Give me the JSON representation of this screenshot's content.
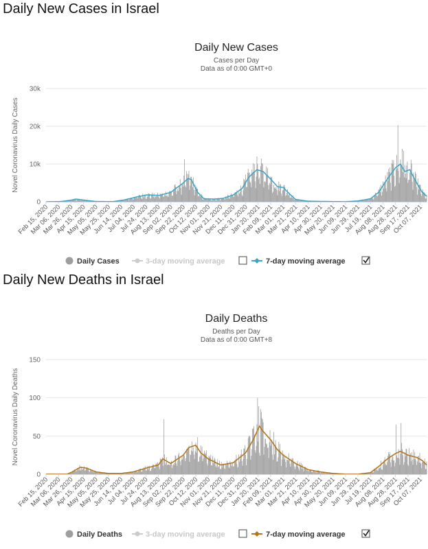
{
  "sections": [
    {
      "heading": "Daily New Cases in Israel"
    },
    {
      "heading": "Daily New Deaths in Israel"
    }
  ],
  "chart_data": [
    {
      "type": "bar",
      "title": "Daily New Cases",
      "subtitle_1": "Cases per Day",
      "subtitle_2": "Data as of 0:00 GMT+0",
      "ylabel": "Novel Coronavirus Daily Cases",
      "ylim": [
        0,
        30000
      ],
      "yticks": [
        0,
        10000,
        20000,
        30000
      ],
      "ytick_labels": [
        "0",
        "10k",
        "20k",
        "30k"
      ],
      "grid": true,
      "x_start": "Feb 15, 2020",
      "x_end": "Oct 17, 2021",
      "xtick_labels": [
        "Feb 15, 2020",
        "Mar 06, 2020",
        "Mar 26, 2020",
        "Apr 15, 2020",
        "May 05, 2020",
        "May 25, 2020",
        "Jun 14, 2020",
        "Jul 04, 2020",
        "Jul 24, 2020",
        "Aug 13, 2020",
        "Sep 02, 2020",
        "Sep 22, 2020",
        "Oct 12, 2020",
        "Nov 01, 2020",
        "Nov 21, 2020",
        "Dec 11, 2020",
        "Dec 31, 2020",
        "Jan 20, 2021",
        "Feb 09, 2021",
        "Mar 01, 2021",
        "Mar 21, 2021",
        "Apr 10, 2021",
        "Apr 30, 2021",
        "May 20, 2021",
        "Jun 09, 2021",
        "Jun 29, 2021",
        "Jul 19, 2021",
        "Aug 08, 2021",
        "Aug 28, 2021",
        "Sep 17, 2021",
        "Oct 07, 2021"
      ],
      "bar_color": "#9e9e9e",
      "line_color": "#3da6c4",
      "series": [
        {
          "name": "Daily Cases",
          "kind": "bars"
        },
        {
          "name": "3-day moving average",
          "kind": "line",
          "enabled": false
        },
        {
          "name": "7-day moving average",
          "kind": "line",
          "enabled": true
        }
      ],
      "legend": {
        "items": [
          "Daily Cases",
          "3-day moving average",
          "7-day moving average"
        ],
        "checkbox_3day": false,
        "checkbox_7day": true,
        "position": "bottom"
      },
      "trend_points": [
        [
          "Feb 15, 2020",
          0
        ],
        [
          "Mar 10, 2020",
          50
        ],
        [
          "Mar 25, 2020",
          400
        ],
        [
          "Apr 03, 2020",
          700
        ],
        [
          "Apr 15, 2020",
          450
        ],
        [
          "May 05, 2020",
          60
        ],
        [
          "Jun 01, 2020",
          30
        ],
        [
          "Jun 20, 2020",
          500
        ],
        [
          "Jul 10, 2020",
          1300
        ],
        [
          "Jul 25, 2020",
          1800
        ],
        [
          "Aug 15, 2020",
          1700
        ],
        [
          "Sep 02, 2020",
          2500
        ],
        [
          "Sep 22, 2020",
          5000
        ],
        [
          "Sep 30, 2020",
          6200
        ],
        [
          "Oct 05, 2020",
          5800
        ],
        [
          "Oct 15, 2020",
          2500
        ],
        [
          "Oct 25, 2020",
          800
        ],
        [
          "Nov 10, 2020",
          700
        ],
        [
          "Nov 25, 2020",
          900
        ],
        [
          "Dec 11, 2020",
          1800
        ],
        [
          "Dec 25, 2020",
          3500
        ],
        [
          "Jan 05, 2021",
          6500
        ],
        [
          "Jan 18, 2021",
          8500
        ],
        [
          "Jan 28, 2021",
          8000
        ],
        [
          "Feb 09, 2021",
          6000
        ],
        [
          "Feb 20, 2021",
          4000
        ],
        [
          "Mar 01, 2021",
          3800
        ],
        [
          "Mar 10, 2021",
          2300
        ],
        [
          "Mar 21, 2021",
          600
        ],
        [
          "Apr 10, 2021",
          150
        ],
        [
          "May 20, 2021",
          40
        ],
        [
          "Jun 09, 2021",
          20
        ],
        [
          "Jun 29, 2021",
          200
        ],
        [
          "Jul 19, 2021",
          800
        ],
        [
          "Aug 01, 2021",
          2500
        ],
        [
          "Aug 15, 2021",
          6000
        ],
        [
          "Aug 28, 2021",
          9000
        ],
        [
          "Sep 05, 2021",
          10000
        ],
        [
          "Sep 12, 2021",
          8000
        ],
        [
          "Sep 20, 2021",
          8500
        ],
        [
          "Oct 01, 2021",
          5000
        ],
        [
          "Oct 10, 2021",
          2500
        ],
        [
          "Oct 17, 2021",
          1500
        ]
      ],
      "spikes": [
        [
          "Sep 24, 2020",
          11300
        ],
        [
          "Jan 14, 2021",
          10000
        ],
        [
          "Jan 19, 2021",
          10100
        ],
        [
          "Sep 01, 2021",
          20300
        ],
        [
          "Sep 08, 2021",
          14000
        ],
        [
          "Sep 10, 2021",
          13500
        ],
        [
          "Aug 25, 2021",
          11000
        ]
      ]
    },
    {
      "type": "bar",
      "title": "Daily Deaths",
      "subtitle_1": "Deaths per Day",
      "subtitle_2": "Data as of 0:00 GMT+8",
      "ylabel": "Novel Coronavirus Daily Deaths",
      "ylim": [
        0,
        150
      ],
      "yticks": [
        0,
        50,
        100,
        150
      ],
      "ytick_labels": [
        "0",
        "50",
        "100",
        "150"
      ],
      "grid": true,
      "x_start": "Feb 15, 2020",
      "x_end": "Oct 17, 2021",
      "xtick_labels": [
        "Feb 15, 2020",
        "Mar 06, 2020",
        "Mar 26, 2020",
        "Apr 15, 2020",
        "May 05, 2020",
        "May 25, 2020",
        "Jun 14, 2020",
        "Jul 04, 2020",
        "Jul 24, 2020",
        "Aug 13, 2020",
        "Sep 02, 2020",
        "Sep 22, 2020",
        "Oct 12, 2020",
        "Nov 01, 2020",
        "Nov 21, 2020",
        "Dec 11, 2020",
        "Dec 31, 2020",
        "Jan 20, 2021",
        "Feb 09, 2021",
        "Mar 01, 2021",
        "Mar 21, 2021",
        "Apr 10, 2021",
        "Apr 30, 2021",
        "May 20, 2021",
        "Jun 09, 2021",
        "Jun 29, 2021",
        "Jul 19, 2021",
        "Aug 08, 2021",
        "Aug 28, 2021",
        "Sep 17, 2021",
        "Oct 07, 2021"
      ],
      "bar_color": "#9e9e9e",
      "line_color": "#b5751a",
      "series": [
        {
          "name": "Daily Deaths",
          "kind": "bars"
        },
        {
          "name": "3-day moving average",
          "kind": "line",
          "enabled": false
        },
        {
          "name": "7-day moving average",
          "kind": "line",
          "enabled": true
        }
      ],
      "legend": {
        "items": [
          "Daily Deaths",
          "3-day moving average",
          "7-day moving average"
        ],
        "checkbox_3day": false,
        "checkbox_7day": true,
        "position": "bottom"
      },
      "trend_points": [
        [
          "Feb 15, 2020",
          0
        ],
        [
          "Mar 20, 2020",
          0
        ],
        [
          "Mar 28, 2020",
          3
        ],
        [
          "Apr 10, 2020",
          9
        ],
        [
          "Apr 20, 2020",
          8
        ],
        [
          "May 05, 2020",
          3
        ],
        [
          "May 25, 2020",
          1
        ],
        [
          "Jun 14, 2020",
          1
        ],
        [
          "Jul 04, 2020",
          3
        ],
        [
          "Jul 24, 2020",
          8
        ],
        [
          "Aug 13, 2020",
          12
        ],
        [
          "Aug 20, 2020",
          20
        ],
        [
          "Sep 02, 2020",
          14
        ],
        [
          "Sep 22, 2020",
          25
        ],
        [
          "Oct 01, 2020",
          35
        ],
        [
          "Oct 12, 2020",
          38
        ],
        [
          "Oct 20, 2020",
          28
        ],
        [
          "Nov 01, 2020",
          20
        ],
        [
          "Nov 21, 2020",
          12
        ],
        [
          "Dec 11, 2020",
          15
        ],
        [
          "Dec 31, 2020",
          28
        ],
        [
          "Jan 12, 2021",
          45
        ],
        [
          "Jan 22, 2021",
          63
        ],
        [
          "Jan 27, 2021",
          57
        ],
        [
          "Feb 09, 2021",
          45
        ],
        [
          "Feb 20, 2021",
          32
        ],
        [
          "Mar 01, 2021",
          25
        ],
        [
          "Mar 21, 2021",
          14
        ],
        [
          "Apr 10, 2021",
          6
        ],
        [
          "Apr 30, 2021",
          3
        ],
        [
          "May 20, 2021",
          1
        ],
        [
          "Jun 09, 2021",
          0
        ],
        [
          "Jun 29, 2021",
          0
        ],
        [
          "Jul 19, 2021",
          2
        ],
        [
          "Aug 01, 2021",
          10
        ],
        [
          "Aug 15, 2021",
          20
        ],
        [
          "Aug 28, 2021",
          27
        ],
        [
          "Sep 05, 2021",
          30
        ],
        [
          "Sep 17, 2021",
          25
        ],
        [
          "Oct 01, 2021",
          22
        ],
        [
          "Oct 10, 2021",
          18
        ],
        [
          "Oct 17, 2021",
          12
        ]
      ],
      "spikes": [
        [
          "Aug 22, 2020",
          72
        ],
        [
          "Jan 19, 2021",
          100
        ],
        [
          "Jan 21, 2021",
          89
        ],
        [
          "Jan 24, 2021",
          85
        ],
        [
          "Aug 29, 2021",
          65
        ],
        [
          "Sep 06, 2021",
          67
        ]
      ]
    }
  ]
}
